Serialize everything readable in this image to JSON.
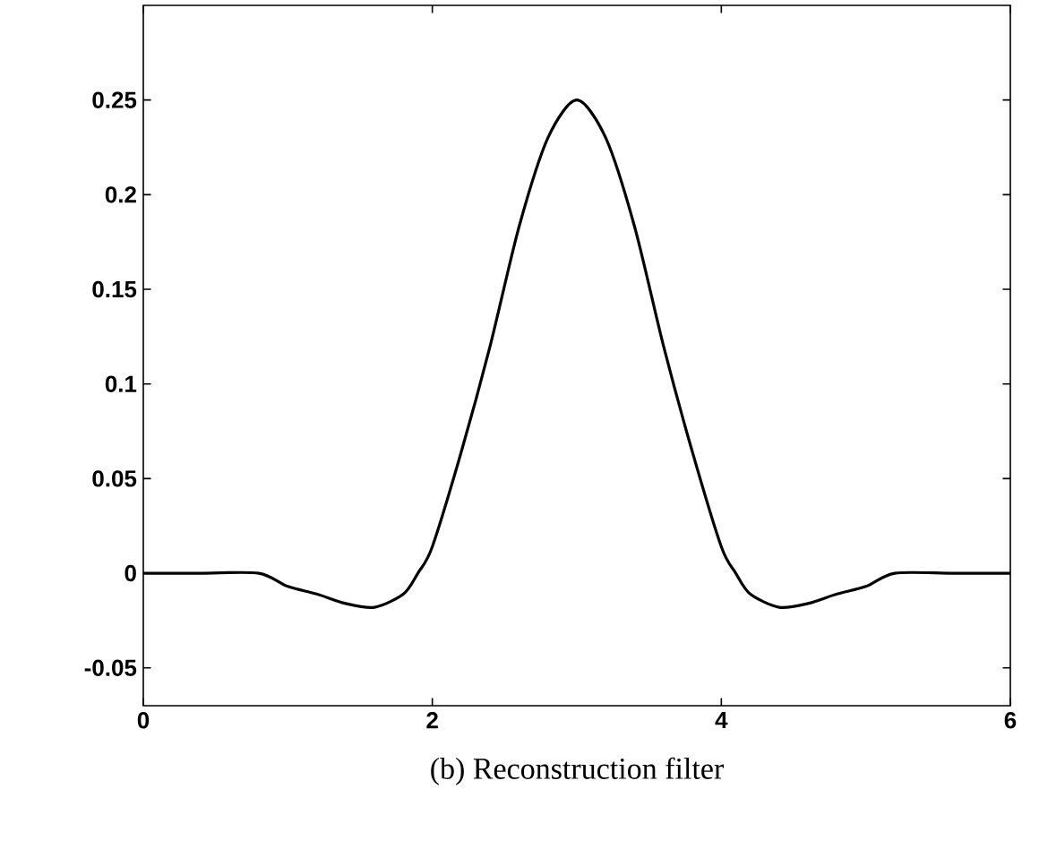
{
  "chart_data": {
    "type": "line",
    "title": "(b) Reconstruction filter",
    "x": [
      0,
      0.4,
      0.8,
      1.0,
      1.2,
      1.4,
      1.6,
      1.8,
      1.9,
      2.0,
      2.2,
      2.4,
      2.6,
      2.8,
      3.0,
      3.2,
      3.4,
      3.6,
      3.8,
      4.0,
      4.1,
      4.2,
      4.4,
      4.6,
      4.8,
      5.0,
      5.2,
      5.6,
      6.0
    ],
    "series": [
      {
        "color": "#000000",
        "values": [
          0,
          0,
          0,
          -0.007,
          -0.011,
          -0.016,
          -0.018,
          -0.011,
          0,
          0.014,
          0.064,
          0.12,
          0.183,
          0.23,
          0.25,
          0.23,
          0.183,
          0.12,
          0.064,
          0.014,
          0,
          -0.011,
          -0.018,
          -0.016,
          -0.011,
          -0.007,
          0,
          0,
          0
        ]
      }
    ],
    "xlim": [
      0,
      6
    ],
    "ylim": [
      -0.07,
      0.3
    ],
    "xticks": [
      0,
      2,
      4,
      6
    ],
    "yticks": [
      -0.05,
      0,
      0.05,
      0.1,
      0.15,
      0.2,
      0.25
    ]
  }
}
